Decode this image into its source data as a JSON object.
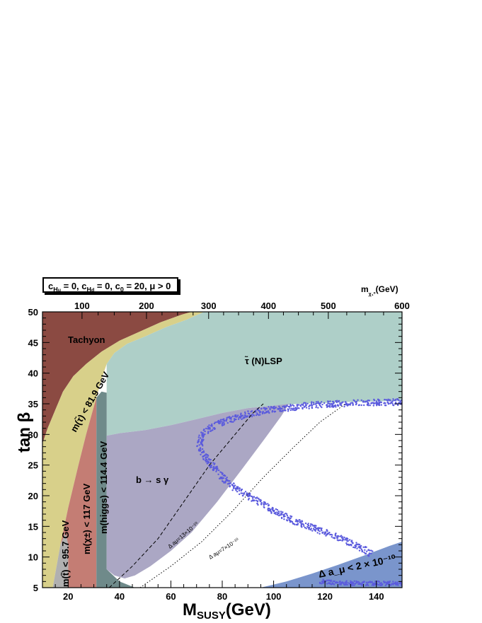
{
  "chart_data": {
    "type": "area",
    "header_label": "c_Hu = 0, c_Hd = 0, c_0 = 20, μ > 0",
    "header_parts": {
      "a": "c",
      "a_sub": "H",
      "a_subsub": "u",
      "a_rest": " = 0, ",
      "b": "c",
      "b_sub": "H",
      "b_subsub": "d",
      "b_rest": " = 0, ",
      "c": "c",
      "c_sub": "0",
      "c_rest": " = 20, μ > 0"
    },
    "xlabel_main": "M",
    "xlabel_sub": "SUSY",
    "xlabel_rest": "(GeV)",
    "ylabel": "tan β",
    "top_axis_label": "m",
    "top_axis_sub": "χ₁⁰",
    "top_axis_unit": "(GeV)",
    "xlim": [
      10,
      150
    ],
    "ylim": [
      5,
      50
    ],
    "x_ticks": [
      "20",
      "40",
      "60",
      "80",
      "100",
      "120",
      "140"
    ],
    "x_tick_values": [
      20,
      40,
      60,
      80,
      100,
      120,
      140
    ],
    "y_ticks": [
      "5",
      "10",
      "15",
      "20",
      "25",
      "30",
      "35",
      "40",
      "45",
      "50"
    ],
    "y_tick_values": [
      5,
      10,
      15,
      20,
      25,
      30,
      35,
      40,
      45,
      50
    ],
    "top_ticks": [
      "100",
      "200",
      "300",
      "400",
      "500",
      "600"
    ],
    "top_tick_x_positions": [
      25.4,
      50.5,
      74.7,
      98.0,
      121.3,
      150.0
    ],
    "regions": [
      {
        "name": "Tachyon",
        "color": "#8b4a42",
        "boundary": [
          [
            10,
            28.5
          ],
          [
            12,
            31
          ],
          [
            15,
            34
          ],
          [
            18,
            37
          ],
          [
            22,
            39.5
          ],
          [
            27,
            41.5
          ],
          [
            33,
            43.5
          ],
          [
            40,
            45.3
          ],
          [
            48,
            46.8
          ],
          [
            56,
            48.3
          ],
          [
            64,
            49.5
          ],
          [
            68,
            50
          ],
          [
            10,
            50
          ]
        ]
      },
      {
        "name": "m(τ̃) < 81.9 GeV",
        "color": "#d8d08a",
        "boundary": [
          [
            10,
            5
          ],
          [
            10,
            28.5
          ],
          [
            12,
            31
          ],
          [
            15,
            34
          ],
          [
            18,
            37
          ],
          [
            22,
            39.5
          ],
          [
            27,
            41.5
          ],
          [
            33,
            43.5
          ],
          [
            40,
            45.3
          ],
          [
            48,
            46.8
          ],
          [
            56,
            48.3
          ],
          [
            64,
            49.5
          ],
          [
            68,
            50
          ],
          [
            73,
            50
          ],
          [
            66,
            48.7
          ],
          [
            58,
            47.5
          ],
          [
            50,
            46
          ],
          [
            43,
            44.8
          ],
          [
            38,
            43.3
          ],
          [
            35,
            41.5
          ],
          [
            33,
            39
          ],
          [
            31,
            36
          ],
          [
            29,
            33
          ],
          [
            27,
            30
          ],
          [
            24,
            25
          ],
          [
            20,
            18
          ],
          [
            17,
            12
          ],
          [
            14,
            5
          ]
        ]
      },
      {
        "name": "τ̃ (N)LSP",
        "color": "#aecfc8",
        "boundary": [
          [
            35,
            41.5
          ],
          [
            38,
            43.3
          ],
          [
            43,
            44.8
          ],
          [
            50,
            46
          ],
          [
            58,
            47.5
          ],
          [
            66,
            48.7
          ],
          [
            73,
            50
          ],
          [
            150,
            50
          ],
          [
            150,
            35.5
          ],
          [
            130,
            35.3
          ],
          [
            110,
            35
          ],
          [
            100,
            34.7
          ],
          [
            90,
            34.3
          ],
          [
            80,
            33.5
          ],
          [
            70,
            32.5
          ],
          [
            60,
            31.5
          ],
          [
            50,
            30.7
          ],
          [
            40,
            30.2
          ],
          [
            35,
            29.8
          ]
        ]
      },
      {
        "name": "m(t̃) < 95.7 GeV",
        "color": "#b0b0b0",
        "boundary": [
          [
            14,
            5
          ],
          [
            17,
            12
          ],
          [
            19,
            14
          ],
          [
            20,
            12
          ],
          [
            20,
            5
          ]
        ]
      },
      {
        "name": "m(χ±) < 117 GeV",
        "color": "#c47d74",
        "boundary": [
          [
            17,
            12
          ],
          [
            20,
            18
          ],
          [
            24,
            25
          ],
          [
            27,
            30
          ],
          [
            29,
            33
          ],
          [
            31,
            36
          ],
          [
            31,
            5
          ],
          [
            20,
            5
          ],
          [
            20,
            12
          ],
          [
            19,
            14
          ]
        ]
      },
      {
        "name": "m(higgs) < 114.4 GeV",
        "color": "#6f8a8a",
        "boundary": [
          [
            31,
            5
          ],
          [
            31,
            36
          ],
          [
            33,
            37
          ],
          [
            35,
            36.8
          ],
          [
            35,
            8
          ],
          [
            40,
            6
          ],
          [
            46,
            5
          ]
        ]
      },
      {
        "name": "b → s γ",
        "color": "#aba7c4",
        "boundary": [
          [
            35,
            29.8
          ],
          [
            40,
            30.2
          ],
          [
            50,
            30.7
          ],
          [
            60,
            31.5
          ],
          [
            70,
            32.5
          ],
          [
            80,
            33.5
          ],
          [
            90,
            34.3
          ],
          [
            100,
            34.7
          ],
          [
            106,
            35
          ],
          [
            103,
            33
          ],
          [
            96,
            29
          ],
          [
            88,
            24.5
          ],
          [
            78,
            19
          ],
          [
            68,
            14
          ],
          [
            60,
            11
          ],
          [
            52,
            8.5
          ],
          [
            46,
            7
          ],
          [
            42,
            6.5
          ],
          [
            38,
            7
          ],
          [
            35,
            8
          ]
        ]
      },
      {
        "name": "Δ a_μ < 2 × 10^-10",
        "color": "#7a95cc",
        "boundary": [
          [
            95,
            5
          ],
          [
            105,
            6
          ],
          [
            115,
            7.3
          ],
          [
            125,
            8.7
          ],
          [
            135,
            10.2
          ],
          [
            145,
            11.8
          ],
          [
            150,
            12.5
          ],
          [
            150,
            5
          ]
        ]
      }
    ],
    "region_labels": [
      {
        "key": "tachyon",
        "text": "Tachyon"
      },
      {
        "key": "stau_lsp",
        "text": "τ̃ (N)LSP"
      },
      {
        "key": "bsg",
        "text": "b → s γ"
      },
      {
        "key": "stau_mass",
        "text": "m(τ̃) < 81.9 GeV"
      },
      {
        "key": "higgs",
        "text": "m(higgs) < 114.4 GeV"
      },
      {
        "key": "chargino",
        "text": "m(χ±) < 117 GeV"
      },
      {
        "key": "stop",
        "text": "m(t̃) < 95.7 GeV"
      },
      {
        "key": "amu2",
        "text": "Δ a_μ < 2 × 10⁻¹⁰"
      }
    ],
    "contours": [
      {
        "name": "Δ aμ=13×10⁻¹⁰",
        "style": "dashed",
        "points": [
          [
            36,
            5
          ],
          [
            45,
            8.5
          ],
          [
            55,
            13
          ],
          [
            65,
            19
          ],
          [
            75,
            25
          ],
          [
            85,
            30
          ],
          [
            92,
            33.5
          ],
          [
            96,
            35
          ]
        ]
      },
      {
        "name": "Δ aμ=7×10⁻¹⁰",
        "style": "dotted",
        "points": [
          [
            48,
            5
          ],
          [
            60,
            8.5
          ],
          [
            72,
            12.5
          ],
          [
            84,
            17.5
          ],
          [
            96,
            23
          ],
          [
            108,
            28
          ],
          [
            118,
            32
          ],
          [
            128,
            35
          ]
        ]
      }
    ],
    "contour_labels": [
      "Δ aμ=13×10⁻¹⁰",
      "Δ aμ=7×10⁻¹⁰"
    ],
    "scatter_band": {
      "color": "#5b5bdd",
      "upper_branch": [
        [
          150,
          35.3
        ],
        [
          130,
          35.1
        ],
        [
          115,
          34.8
        ],
        [
          105,
          34.3
        ],
        [
          98,
          34
        ],
        [
          92,
          33.5
        ],
        [
          86,
          32.8
        ],
        [
          80,
          32
        ],
        [
          75,
          31
        ],
        [
          72,
          30
        ],
        [
          71,
          28.5
        ],
        [
          72,
          27
        ],
        [
          74,
          26
        ],
        [
          77,
          24.5
        ],
        [
          80,
          23
        ],
        [
          84,
          21.5
        ],
        [
          88,
          20.5
        ],
        [
          92,
          19.5
        ],
        [
          96,
          18.5
        ],
        [
          100,
          17.5
        ],
        [
          105,
          16.5
        ],
        [
          110,
          15.5
        ],
        [
          115,
          14.8
        ],
        [
          120,
          14
        ],
        [
          125,
          13.2
        ],
        [
          130,
          12.2
        ],
        [
          135,
          11.3
        ],
        [
          138,
          10.5
        ]
      ],
      "lower_branch": [
        [
          118,
          6
        ],
        [
          125,
          5.8
        ],
        [
          135,
          5.7
        ],
        [
          145,
          5.7
        ],
        [
          150,
          5.7
        ]
      ]
    }
  }
}
